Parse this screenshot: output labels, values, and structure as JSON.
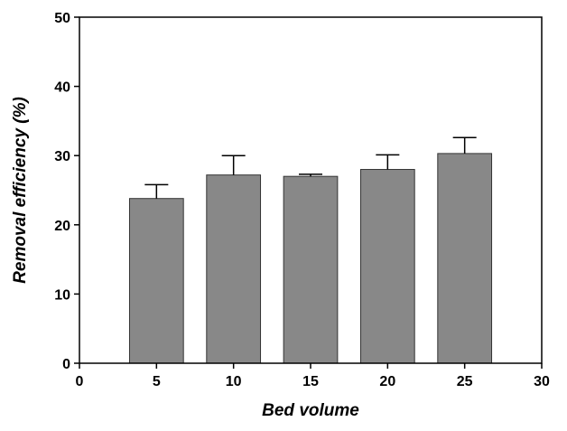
{
  "chart_data": {
    "type": "bar",
    "title": "",
    "xlabel": "Bed volume",
    "ylabel": "Removal efficiency (%)",
    "x": [
      5,
      10,
      15,
      20,
      25
    ],
    "values": [
      23.8,
      27.2,
      27.0,
      28.0,
      30.3
    ],
    "error_upper": [
      25.8,
      30.0,
      27.3,
      30.1,
      32.6
    ],
    "xlim": [
      0,
      30
    ],
    "ylim": [
      0,
      50
    ],
    "xticks": [
      0,
      5,
      10,
      15,
      20,
      25,
      30
    ],
    "yticks": [
      0,
      10,
      20,
      30,
      40,
      50
    ],
    "bar_width": 3.5,
    "bar_color": "#888888",
    "grid": false,
    "legend": "none"
  }
}
